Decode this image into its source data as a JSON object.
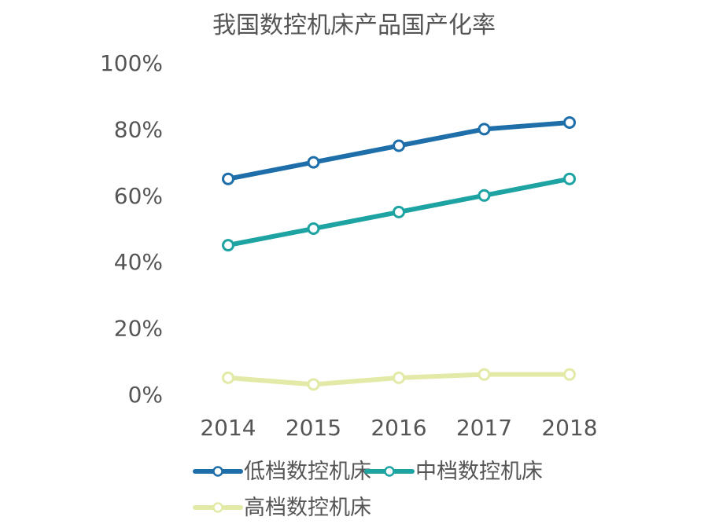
{
  "chart_data": {
    "type": "line",
    "title": "我国数控机床产品国产化率",
    "categories": [
      "2014",
      "2015",
      "2016",
      "2017",
      "2018"
    ],
    "y_ticks": [
      "0%",
      "20%",
      "40%",
      "60%",
      "80%",
      "100%"
    ],
    "ylim": [
      0,
      100
    ],
    "grid": false,
    "legend_position": "bottom",
    "series": [
      {
        "name": "低档数控机床",
        "values": [
          65,
          70,
          75,
          80,
          82
        ],
        "color": "#1E6FA9"
      },
      {
        "name": "中档数控机床",
        "values": [
          45,
          50,
          55,
          60,
          65
        ],
        "color": "#1EA3A3"
      },
      {
        "name": "高档数控机床",
        "values": [
          5,
          3,
          5,
          6,
          6
        ],
        "color": "#E3EAA7"
      }
    ]
  }
}
